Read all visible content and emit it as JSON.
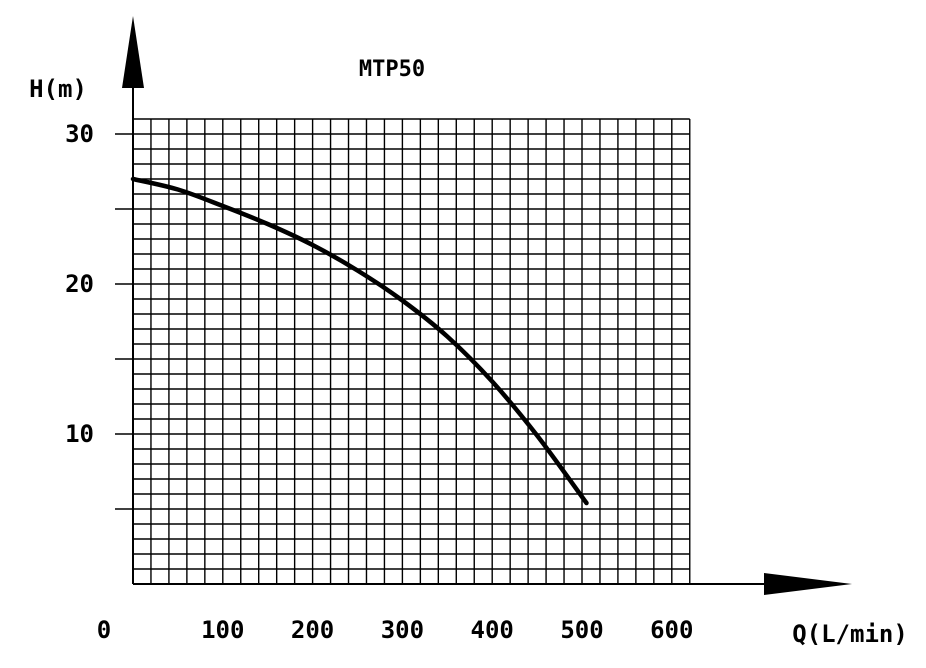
{
  "chart_data": {
    "type": "line",
    "title": "MTP50",
    "xlabel": "Q(L/min)",
    "ylabel": "H(m)",
    "xlim": [
      0,
      620
    ],
    "ylim": [
      0,
      30
    ],
    "grid": true,
    "x_ticks": [
      0,
      100,
      200,
      300,
      400,
      500,
      600
    ],
    "x_tick_labels": [
      "0",
      "100",
      "200",
      "300",
      "400",
      "500",
      "600"
    ],
    "y_ticks": [
      10,
      20,
      30
    ],
    "y_tick_labels": [
      "10",
      "20",
      "30"
    ],
    "series": [
      {
        "x": [
          0,
          50,
          100,
          150,
          200,
          250,
          300,
          350,
          400,
          450,
          505
        ],
        "y": [
          27.0,
          26.3,
          25.2,
          24.0,
          22.6,
          20.9,
          18.9,
          16.5,
          13.5,
          9.9,
          5.4
        ]
      }
    ],
    "colors": {
      "line": "#000000",
      "grid": "#000000"
    }
  }
}
